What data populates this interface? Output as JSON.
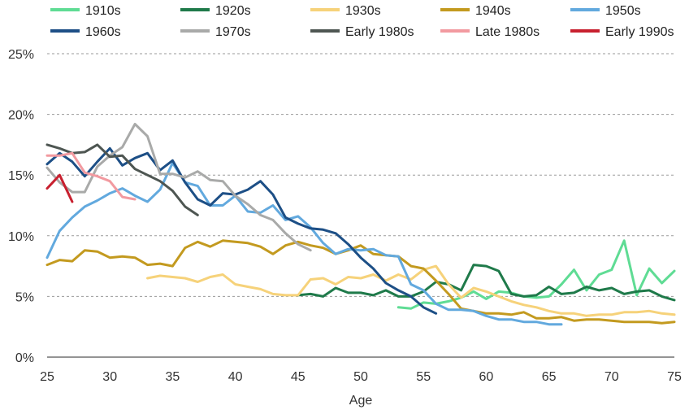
{
  "chart_data": {
    "type": "line",
    "title": "",
    "xlabel": "Age",
    "ylabel": "",
    "xlim": [
      25,
      75
    ],
    "ylim": [
      0,
      25
    ],
    "x_ticks": [
      25,
      30,
      35,
      40,
      45,
      50,
      55,
      60,
      65,
      70,
      75
    ],
    "y_ticks": [
      0,
      5,
      10,
      15,
      20,
      25
    ],
    "y_tick_suffix": "%",
    "grid": "horizontal dashed",
    "legend_position": "top",
    "series": [
      {
        "name": "1910s",
        "color": "#5fdc94",
        "x": [
          53,
          54,
          55,
          56,
          57,
          58,
          59,
          60,
          61,
          62,
          63,
          64,
          65,
          66,
          67,
          68,
          69,
          70,
          71,
          72,
          73,
          74,
          75
        ],
        "y": [
          4.1,
          4.0,
          4.5,
          4.4,
          4.6,
          4.9,
          5.4,
          4.8,
          5.4,
          5.3,
          5.0,
          4.9,
          5.0,
          6.0,
          7.2,
          5.5,
          6.8,
          7.2,
          9.6,
          5.1,
          7.3,
          6.1,
          7.1
        ]
      },
      {
        "name": "1920s",
        "color": "#1f7a4a",
        "x": [
          45,
          46,
          47,
          48,
          49,
          50,
          51,
          52,
          53,
          54,
          55,
          56,
          57,
          58,
          59,
          60,
          61,
          62,
          63,
          64,
          65,
          66,
          67,
          68,
          69,
          70,
          71,
          72,
          73,
          74,
          75
        ],
        "y": [
          5.1,
          5.2,
          5.0,
          5.7,
          5.3,
          5.3,
          5.1,
          5.5,
          5.0,
          5.0,
          5.4,
          6.2,
          6.0,
          5.5,
          7.6,
          7.5,
          7.1,
          5.2,
          5.0,
          5.1,
          5.8,
          5.2,
          5.3,
          5.8,
          5.5,
          5.7,
          5.2,
          5.4,
          5.5,
          5.0,
          4.7
        ]
      },
      {
        "name": "1930s",
        "color": "#f6d27a",
        "x": [
          33,
          34,
          35,
          36,
          37,
          38,
          39,
          40,
          41,
          42,
          43,
          44,
          45,
          46,
          47,
          48,
          49,
          50,
          51,
          52,
          53,
          54,
          55,
          56,
          57,
          58,
          59,
          60,
          61,
          62,
          63,
          64,
          65,
          66,
          67,
          68,
          69,
          70,
          71,
          72,
          73,
          74,
          75
        ],
        "y": [
          6.5,
          6.7,
          6.6,
          6.5,
          6.2,
          6.6,
          6.8,
          6.0,
          5.8,
          5.6,
          5.2,
          5.1,
          5.1,
          6.4,
          6.5,
          6.0,
          6.6,
          6.5,
          6.8,
          6.3,
          6.8,
          6.4,
          7.2,
          7.5,
          6.0,
          4.9,
          5.7,
          5.4,
          5.0,
          4.6,
          4.3,
          4.1,
          3.8,
          3.6,
          3.6,
          3.4,
          3.5,
          3.5,
          3.7,
          3.7,
          3.8,
          3.6,
          3.5
        ]
      },
      {
        "name": "1940s",
        "color": "#c39a1f",
        "x": [
          25,
          26,
          27,
          28,
          29,
          30,
          31,
          32,
          33,
          34,
          35,
          36,
          37,
          38,
          39,
          40,
          41,
          42,
          43,
          44,
          45,
          46,
          47,
          48,
          49,
          50,
          51,
          52,
          53,
          54,
          55,
          56,
          57,
          58,
          59,
          60,
          61,
          62,
          63,
          64,
          65,
          66,
          67,
          68,
          69,
          70,
          71,
          72,
          73,
          74,
          75
        ],
        "y": [
          7.6,
          8.0,
          7.9,
          8.8,
          8.7,
          8.2,
          8.3,
          8.2,
          7.6,
          7.7,
          7.5,
          9.0,
          9.5,
          9.1,
          9.6,
          9.5,
          9.4,
          9.1,
          8.5,
          9.2,
          9.5,
          9.2,
          9.0,
          8.5,
          8.8,
          9.2,
          8.5,
          8.4,
          8.3,
          7.5,
          7.3,
          6.3,
          5.2,
          4.0,
          3.8,
          3.6,
          3.6,
          3.5,
          3.7,
          3.2,
          3.2,
          3.3,
          3.0,
          3.1,
          3.1,
          3.0,
          2.9,
          2.9,
          2.9,
          2.8,
          2.9
        ]
      },
      {
        "name": "1950s",
        "color": "#62a9de",
        "x": [
          25,
          26,
          27,
          28,
          29,
          30,
          31,
          32,
          33,
          34,
          35,
          36,
          37,
          38,
          39,
          40,
          41,
          42,
          43,
          44,
          45,
          46,
          47,
          48,
          49,
          50,
          51,
          52,
          53,
          54,
          55,
          56,
          57,
          58,
          59,
          60,
          61,
          62,
          63,
          64,
          65,
          66
        ],
        "y": [
          8.2,
          10.4,
          11.5,
          12.4,
          12.9,
          13.5,
          13.9,
          13.3,
          12.8,
          13.8,
          16.0,
          14.4,
          14.1,
          12.5,
          12.5,
          13.3,
          12.0,
          11.9,
          12.5,
          11.3,
          11.6,
          10.7,
          9.4,
          8.5,
          8.9,
          8.8,
          8.9,
          8.4,
          8.3,
          6.0,
          5.5,
          4.4,
          3.9,
          3.9,
          3.8,
          3.4,
          3.1,
          3.1,
          2.9,
          2.9,
          2.7,
          2.7
        ]
      },
      {
        "name": "1960s",
        "color": "#1d4f86",
        "x": [
          25,
          26,
          27,
          28,
          29,
          30,
          31,
          32,
          33,
          34,
          35,
          36,
          37,
          38,
          39,
          40,
          41,
          42,
          43,
          44,
          45,
          46,
          47,
          48,
          49,
          50,
          51,
          52,
          53,
          54,
          55,
          56
        ],
        "y": [
          15.9,
          16.8,
          16.1,
          14.9,
          16.1,
          17.2,
          15.8,
          16.4,
          16.8,
          15.4,
          16.2,
          14.4,
          13.0,
          12.5,
          13.5,
          13.4,
          13.8,
          14.5,
          13.4,
          11.5,
          11.0,
          10.6,
          10.5,
          10.2,
          9.3,
          8.2,
          7.3,
          6.1,
          5.5,
          5.0,
          4.1,
          3.6
        ]
      },
      {
        "name": "1970s",
        "color": "#a9aaa9",
        "x": [
          25,
          26,
          27,
          28,
          29,
          30,
          31,
          32,
          33,
          34,
          35,
          36,
          37,
          38,
          39,
          40,
          41,
          42,
          43,
          44,
          45,
          46
        ],
        "y": [
          15.6,
          14.4,
          13.6,
          13.6,
          15.7,
          16.6,
          17.3,
          19.2,
          18.2,
          15.1,
          15.1,
          14.8,
          15.3,
          14.6,
          14.5,
          13.3,
          12.6,
          11.7,
          11.3,
          10.2,
          9.3,
          8.8
        ]
      },
      {
        "name": "Early 1980s",
        "color": "#4e5652",
        "x": [
          25,
          26,
          27,
          28,
          29,
          30,
          31,
          32,
          33,
          34,
          35,
          36,
          37
        ],
        "y": [
          17.5,
          17.2,
          16.8,
          16.9,
          17.5,
          16.5,
          16.6,
          15.5,
          15.0,
          14.5,
          13.7,
          12.4,
          11.7
        ]
      },
      {
        "name": "Late 1980s",
        "color": "#f29aa0",
        "x": [
          25,
          26,
          27,
          28,
          29,
          30,
          31,
          32
        ],
        "y": [
          16.6,
          16.6,
          16.8,
          15.2,
          14.9,
          14.5,
          13.2,
          13.0
        ]
      },
      {
        "name": "Early 1990s",
        "color": "#c8202f",
        "x": [
          25,
          26,
          27
        ],
        "y": [
          13.9,
          15.0,
          12.8
        ]
      }
    ]
  }
}
